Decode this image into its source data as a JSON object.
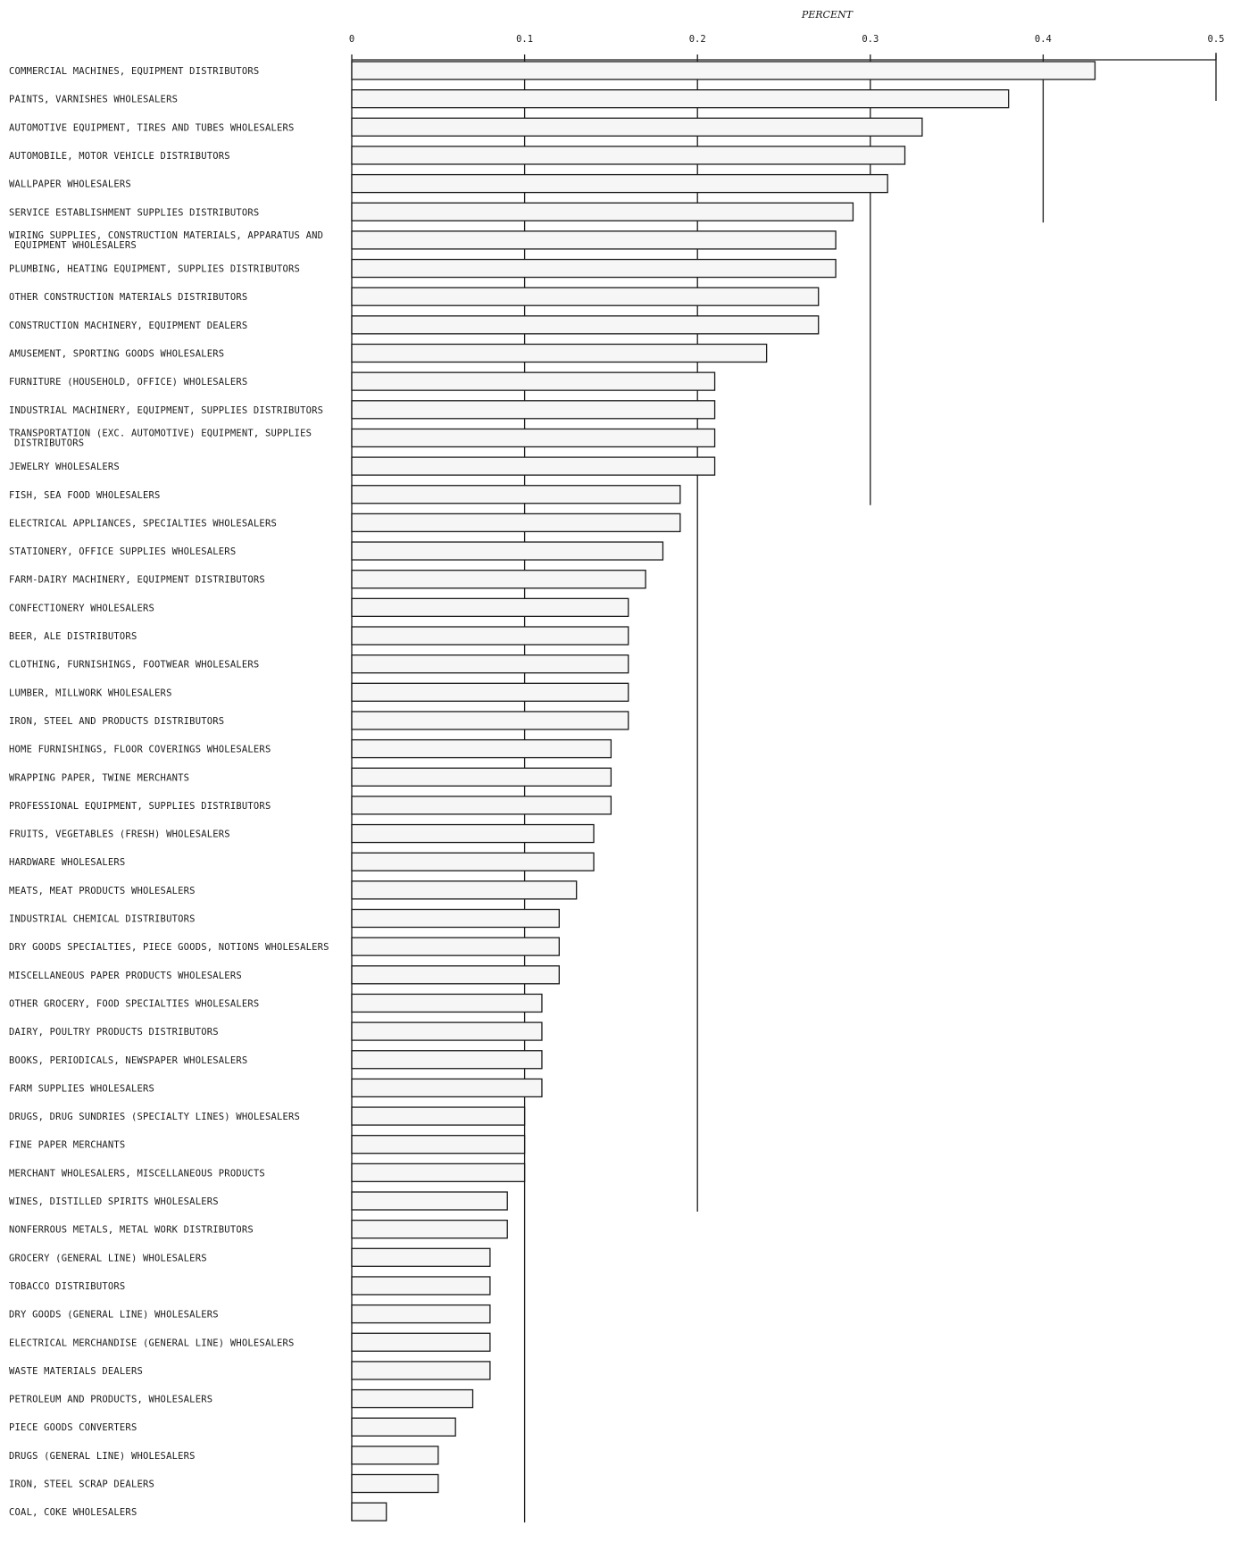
{
  "chart_data": {
    "type": "bar",
    "orientation": "horizontal",
    "title": "",
    "xlabel": "PERCENT",
    "ylabel": "",
    "xlim": [
      0,
      0.5
    ],
    "x_ticks": [
      "0",
      "0.1",
      "0.2",
      "0.3",
      "0.4",
      "0.5"
    ],
    "grid": false,
    "legend": "none",
    "categories": [
      [
        "COMMERCIAL MACHINES, EQUIPMENT DISTRIBUTORS"
      ],
      [
        "PAINTS, VARNISHES WHOLESALERS"
      ],
      [
        "AUTOMOTIVE EQUIPMENT, TIRES AND TUBES WHOLESALERS"
      ],
      [
        "AUTOMOBILE, MOTOR VEHICLE DISTRIBUTORS"
      ],
      [
        "WALLPAPER WHOLESALERS"
      ],
      [
        "SERVICE ESTABLISHMENT SUPPLIES DISTRIBUTORS"
      ],
      [
        "WIRING SUPPLIES, CONSTRUCTION MATERIALS, APPARATUS AND",
        "EQUIPMENT WHOLESALERS"
      ],
      [
        "PLUMBING, HEATING EQUIPMENT, SUPPLIES DISTRIBUTORS"
      ],
      [
        "OTHER CONSTRUCTION MATERIALS DISTRIBUTORS"
      ],
      [
        "CONSTRUCTION MACHINERY, EQUIPMENT DEALERS"
      ],
      [
        "AMUSEMENT, SPORTING GOODS WHOLESALERS"
      ],
      [
        "FURNITURE (HOUSEHOLD, OFFICE) WHOLESALERS"
      ],
      [
        "INDUSTRIAL MACHINERY, EQUIPMENT, SUPPLIES DISTRIBUTORS"
      ],
      [
        "TRANSPORTATION (EXC. AUTOMOTIVE) EQUIPMENT, SUPPLIES",
        "DISTRIBUTORS"
      ],
      [
        "JEWELRY WHOLESALERS"
      ],
      [
        "FISH, SEA FOOD WHOLESALERS"
      ],
      [
        "ELECTRICAL APPLIANCES, SPECIALTIES WHOLESALERS"
      ],
      [
        "STATIONERY, OFFICE SUPPLIES WHOLESALERS"
      ],
      [
        "FARM-DAIRY MACHINERY, EQUIPMENT DISTRIBUTORS"
      ],
      [
        "CONFECTIONERY WHOLESALERS"
      ],
      [
        "BEER, ALE DISTRIBUTORS"
      ],
      [
        "CLOTHING, FURNISHINGS, FOOTWEAR WHOLESALERS"
      ],
      [
        "LUMBER, MILLWORK WHOLESALERS"
      ],
      [
        "IRON, STEEL AND PRODUCTS DISTRIBUTORS"
      ],
      [
        "HOME FURNISHINGS, FLOOR COVERINGS WHOLESALERS"
      ],
      [
        "WRAPPING PAPER, TWINE MERCHANTS"
      ],
      [
        "PROFESSIONAL EQUIPMENT, SUPPLIES DISTRIBUTORS"
      ],
      [
        "FRUITS, VEGETABLES (FRESH) WHOLESALERS"
      ],
      [
        "HARDWARE WHOLESALERS"
      ],
      [
        "MEATS, MEAT PRODUCTS WHOLESALERS"
      ],
      [
        "INDUSTRIAL CHEMICAL DISTRIBUTORS"
      ],
      [
        "DRY GOODS SPECIALTIES, PIECE GOODS, NOTIONS WHOLESALERS"
      ],
      [
        "MISCELLANEOUS PAPER PRODUCTS WHOLESALERS"
      ],
      [
        "OTHER GROCERY, FOOD SPECIALTIES WHOLESALERS"
      ],
      [
        "DAIRY, POULTRY PRODUCTS DISTRIBUTORS"
      ],
      [
        "BOOKS, PERIODICALS, NEWSPAPER WHOLESALERS"
      ],
      [
        "FARM SUPPLIES WHOLESALERS"
      ],
      [
        "DRUGS, DRUG SUNDRIES (SPECIALTY LINES) WHOLESALERS"
      ],
      [
        "FINE PAPER MERCHANTS"
      ],
      [
        "MERCHANT WHOLESALERS, MISCELLANEOUS PRODUCTS"
      ],
      [
        "WINES, DISTILLED SPIRITS WHOLESALERS"
      ],
      [
        "NONFERROUS METALS, METAL WORK DISTRIBUTORS"
      ],
      [
        "GROCERY (GENERAL LINE) WHOLESALERS"
      ],
      [
        "TOBACCO DISTRIBUTORS"
      ],
      [
        "DRY GOODS (GENERAL LINE) WHOLESALERS"
      ],
      [
        "ELECTRICAL MERCHANDISE (GENERAL LINE) WHOLESALERS"
      ],
      [
        "WASTE MATERIALS DEALERS"
      ],
      [
        "PETROLEUM AND PRODUCTS, WHOLESALERS"
      ],
      [
        "PIECE GOODS CONVERTERS"
      ],
      [
        "DRUGS (GENERAL LINE) WHOLESALERS"
      ],
      [
        "IRON, STEEL SCRAP DEALERS"
      ],
      [
        "COAL, COKE WHOLESALERS"
      ]
    ],
    "values": [
      0.43,
      0.38,
      0.33,
      0.32,
      0.31,
      0.29,
      0.28,
      0.28,
      0.27,
      0.27,
      0.24,
      0.21,
      0.21,
      0.21,
      0.21,
      0.19,
      0.19,
      0.18,
      0.17,
      0.16,
      0.16,
      0.16,
      0.16,
      0.16,
      0.15,
      0.15,
      0.15,
      0.14,
      0.14,
      0.13,
      0.12,
      0.12,
      0.12,
      0.11,
      0.11,
      0.11,
      0.11,
      0.1,
      0.1,
      0.1,
      0.09,
      0.09,
      0.08,
      0.08,
      0.08,
      0.08,
      0.08,
      0.07,
      0.06,
      0.05,
      0.05,
      0.02
    ],
    "guide_lines": [
      {
        "value": 0.4,
        "through_category": 5
      },
      {
        "value": 0.3,
        "through_category": 15
      },
      {
        "value": 0.2,
        "through_category": 40
      },
      {
        "value": 0.1,
        "through_category": 51
      }
    ]
  }
}
